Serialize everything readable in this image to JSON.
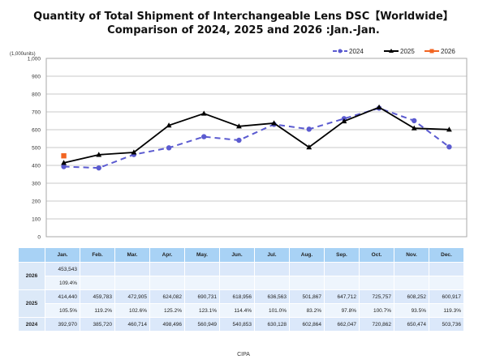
{
  "title_line1": "Quantity of Total Shipment of Interchangeable Lens DSC【Worldwide】",
  "title_line2": "Comparison of 2024, 2025 and 2026 :Jan.-Jan.",
  "source": "CIPA",
  "chart_data": {
    "type": "line",
    "title": "Quantity of Total Shipment of Interchangeable Lens DSC【Worldwide】 Comparison of 2024, 2025 and 2026 :Jan.-Jan.",
    "ylabel": "(1,000units)",
    "xlabel": "",
    "ylim": [
      0,
      1000
    ],
    "yticks": [
      "0",
      "100",
      "200",
      "300",
      "400",
      "500",
      "600",
      "700",
      "800",
      "900",
      "1,000"
    ],
    "ytick_values": [
      0,
      100,
      200,
      300,
      400,
      500,
      600,
      700,
      800,
      900,
      1000
    ],
    "grid": true,
    "legend_position": "top-right",
    "categories": [
      "Jan.",
      "Feb.",
      "Mar.",
      "Apr.",
      "May.",
      "Jun.",
      "Jul.",
      "Aug.",
      "Sep.",
      "Oct.",
      "Nov.",
      "Dec."
    ],
    "series": [
      {
        "name": "2024",
        "color": "#5b5bd0",
        "style": "dashed",
        "marker": "circle",
        "values": [
          392.97,
          385.72,
          460.714,
          498.496,
          560.949,
          540.853,
          630.128,
          602.864,
          662.047,
          720.862,
          650.474,
          503.736
        ]
      },
      {
        "name": "2025",
        "color": "#000000",
        "style": "solid",
        "marker": "triangle",
        "values": [
          414.44,
          459.783,
          472.905,
          624.082,
          690.731,
          618.956,
          636.563,
          501.867,
          647.712,
          725.757,
          608.252,
          600.917
        ]
      },
      {
        "name": "2026",
        "color": "#f26522",
        "style": "solid",
        "marker": "square",
        "values": [
          453.543,
          null,
          null,
          null,
          null,
          null,
          null,
          null,
          null,
          null,
          null,
          null
        ]
      }
    ]
  },
  "table": {
    "headers": [
      "Jan.",
      "Feb.",
      "Mar.",
      "Apr.",
      "May.",
      "Jun.",
      "Jul.",
      "Aug.",
      "Sep.",
      "Oct.",
      "Nov.",
      "Dec."
    ],
    "rows": [
      {
        "year": "2026",
        "values": [
          "453,543",
          "",
          "",
          "",
          "",
          "",
          "",
          "",
          "",
          "",
          "",
          ""
        ],
        "ratios": [
          "109.4%",
          "",
          "",
          "",
          "",
          "",
          "",
          "",
          "",
          "",
          "",
          ""
        ]
      },
      {
        "year": "2025",
        "values": [
          "414,440",
          "459,783",
          "472,905",
          "624,082",
          "690,731",
          "618,956",
          "636,563",
          "501,867",
          "647,712",
          "725,757",
          "608,252",
          "600,917"
        ],
        "ratios": [
          "105.5%",
          "119.2%",
          "102.6%",
          "125.2%",
          "123.1%",
          "114.4%",
          "101.0%",
          "83.2%",
          "97.8%",
          "100.7%",
          "93.5%",
          "119.3%"
        ]
      },
      {
        "year": "2024",
        "values": [
          "392,970",
          "385,720",
          "460,714",
          "498,496",
          "560,949",
          "540,853",
          "630,128",
          "602,864",
          "662,047",
          "720,862",
          "650,474",
          "503,736"
        ]
      }
    ]
  }
}
